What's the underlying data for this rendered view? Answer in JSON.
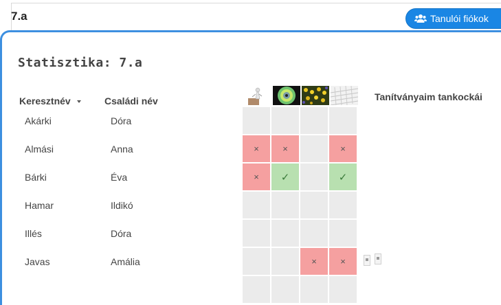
{
  "page": {
    "title": "7.a",
    "student_accounts_button": "Tanulói fiókok"
  },
  "modal": {
    "title": "Statisztika: 7.a",
    "columns": {
      "first_name": "Keresztnév",
      "last_name": "Családi név",
      "tanks": "Tanítványaim tankockái"
    },
    "exercise_thumbnails": [
      "figure-at-desk-thumbnail",
      "cd-disc-thumbnail",
      "flowers-thumbnail",
      "keyboard-thumbnail"
    ]
  },
  "status_symbols": {
    "fail": "×",
    "ok": "✓"
  },
  "students": [
    {
      "first": "Akárki",
      "last": "Dóra",
      "results": [
        "",
        "",
        "",
        ""
      ]
    },
    {
      "first": "Almási",
      "last": "Anna",
      "results": [
        "fail",
        "fail",
        "",
        "fail"
      ]
    },
    {
      "first": "Bárki",
      "last": "Éva",
      "results": [
        "fail",
        "ok",
        "",
        "ok"
      ]
    },
    {
      "first": "Hamar",
      "last": "Ildikó",
      "results": [
        "",
        "",
        "",
        ""
      ]
    },
    {
      "first": "Illés",
      "last": "Dóra",
      "results": [
        "",
        "",
        "",
        ""
      ]
    },
    {
      "first": "Javas",
      "last": "Amália",
      "results": [
        "",
        "",
        "fail",
        "fail"
      ]
    }
  ],
  "colors": {
    "accent": "#1a86e4",
    "fail": "#f5a0a0",
    "ok": "#b8e0b0",
    "empty": "#ebebeb"
  }
}
